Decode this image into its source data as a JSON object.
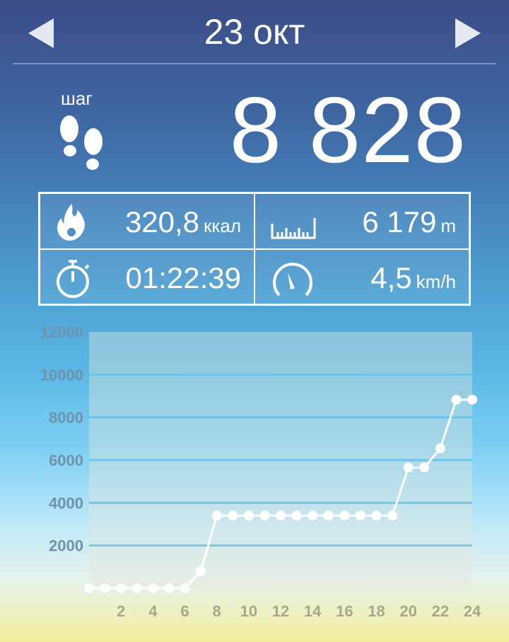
{
  "header": {
    "date": "23 окт",
    "prev": "arrow-left-icon",
    "next": "arrow-right-icon"
  },
  "steps": {
    "label": "шаг",
    "value": "8 828",
    "icon": "footprints-icon"
  },
  "stats": {
    "calories": {
      "value": "320,8",
      "unit": "ккал",
      "icon": "fire-icon"
    },
    "distance": {
      "value": "6 179",
      "unit": "m",
      "icon": "ruler-icon"
    },
    "duration": {
      "value": "01:22:39",
      "icon": "stopwatch-icon"
    },
    "speed": {
      "value": "4,5",
      "unit": "km/h",
      "icon": "speedometer-icon"
    }
  },
  "chart_data": {
    "type": "line",
    "x": [
      0,
      1,
      2,
      3,
      4,
      5,
      6,
      7,
      8,
      9,
      10,
      11,
      12,
      13,
      14,
      15,
      16,
      17,
      18,
      19,
      20,
      21,
      22,
      23,
      24
    ],
    "values": [
      0,
      0,
      0,
      0,
      0,
      0,
      0,
      800,
      3400,
      3400,
      3400,
      3400,
      3400,
      3400,
      3400,
      3400,
      3400,
      3400,
      3400,
      3400,
      5650,
      5650,
      6550,
      8828,
      8828
    ],
    "xticks": [
      "2",
      "4",
      "6",
      "8",
      "10",
      "12",
      "14",
      "16",
      "18",
      "20",
      "22",
      "24"
    ],
    "yticks": [
      "2000",
      "4000",
      "6000",
      "8000",
      "10000",
      "12000"
    ],
    "ylim": [
      0,
      12000
    ],
    "xlim": [
      0,
      24
    ],
    "grid": true,
    "cumulative": true
  }
}
